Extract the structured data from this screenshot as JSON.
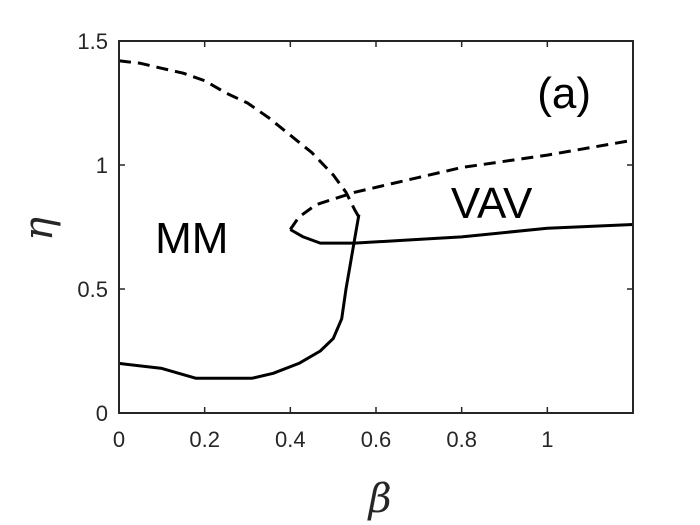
{
  "chart_data": {
    "type": "line",
    "title": "",
    "xlabel": "β",
    "ylabel": "η",
    "xlim": [
      0,
      1.2
    ],
    "ylim": [
      0,
      1.5
    ],
    "x_ticks": [
      0,
      0.2,
      0.4,
      0.6,
      0.8,
      1
    ],
    "x_tick_labels": [
      "0",
      "0.2",
      "0.4",
      "0.6",
      "0.8",
      "1"
    ],
    "y_ticks": [
      0,
      0.5,
      1,
      1.5
    ],
    "y_tick_labels": [
      "0",
      "0.5",
      "1",
      "1.5"
    ],
    "grid": false,
    "panel_label": "(a)",
    "annotations": [
      {
        "text": "MM",
        "x": 0.17,
        "y": 0.71
      },
      {
        "text": "VAV",
        "x": 0.87,
        "y": 0.85
      }
    ],
    "series": [
      {
        "style": "solid",
        "color": "#000000",
        "points": [
          [
            0.0,
            0.2
          ],
          [
            0.1,
            0.18
          ],
          [
            0.18,
            0.14
          ],
          [
            0.25,
            0.14
          ],
          [
            0.31,
            0.14
          ],
          [
            0.36,
            0.16
          ],
          [
            0.42,
            0.2
          ],
          [
            0.47,
            0.25
          ],
          [
            0.5,
            0.3
          ],
          [
            0.52,
            0.38
          ],
          [
            0.53,
            0.5
          ],
          [
            0.54,
            0.6
          ],
          [
            0.55,
            0.7
          ],
          [
            0.56,
            0.8
          ]
        ]
      },
      {
        "style": "solid",
        "color": "#000000",
        "points": [
          [
            0.4,
            0.74
          ],
          [
            0.43,
            0.71
          ],
          [
            0.47,
            0.685
          ],
          [
            0.55,
            0.685
          ],
          [
            0.7,
            0.7
          ],
          [
            0.8,
            0.71
          ],
          [
            1.0,
            0.745
          ],
          [
            1.2,
            0.76
          ]
        ]
      },
      {
        "style": "dashed",
        "color": "#000000",
        "points": [
          [
            0.0,
            1.42
          ],
          [
            0.05,
            1.41
          ],
          [
            0.1,
            1.39
          ],
          [
            0.15,
            1.37
          ],
          [
            0.2,
            1.34
          ],
          [
            0.25,
            1.29
          ],
          [
            0.3,
            1.25
          ],
          [
            0.35,
            1.19
          ],
          [
            0.4,
            1.12
          ],
          [
            0.45,
            1.05
          ],
          [
            0.5,
            0.96
          ],
          [
            0.53,
            0.89
          ],
          [
            0.55,
            0.82
          ],
          [
            0.56,
            0.79
          ]
        ]
      },
      {
        "style": "dashed",
        "color": "#000000",
        "points": [
          [
            0.4,
            0.74
          ],
          [
            0.42,
            0.79
          ],
          [
            0.46,
            0.84
          ],
          [
            0.55,
            0.89
          ],
          [
            0.7,
            0.95
          ],
          [
            0.8,
            0.99
          ],
          [
            1.0,
            1.04
          ],
          [
            1.2,
            1.1
          ]
        ]
      }
    ]
  }
}
